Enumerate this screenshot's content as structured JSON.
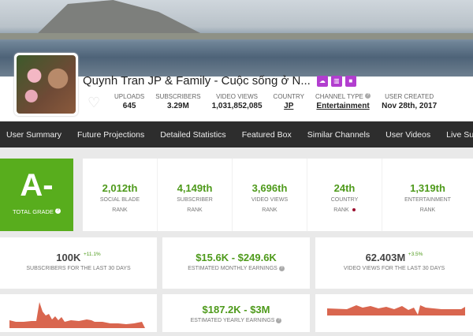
{
  "channel": {
    "name": "Quynh Tran JP & Family - Cuộc sống ở N...",
    "badges": [
      "upload-cloud-icon",
      "chart-icon",
      "video-camera-icon"
    ]
  },
  "stats": [
    {
      "label": "UPLOADS",
      "value": "645"
    },
    {
      "label": "SUBSCRIBERS",
      "value": "3.29M"
    },
    {
      "label": "VIDEO VIEWS",
      "value": "1,031,852,085"
    },
    {
      "label": "COUNTRY",
      "value": "JP"
    },
    {
      "label": "CHANNEL TYPE",
      "value": "Entertainment"
    },
    {
      "label": "USER CREATED",
      "value": "Nov 28th, 2017"
    }
  ],
  "nav": [
    "User Summary",
    "Future Projections",
    "Detailed Statistics",
    "Featured Box",
    "Similar Channels",
    "User Videos",
    "Live Subscriber"
  ],
  "grade": {
    "value": "A-",
    "label": "TOTAL GRADE"
  },
  "ranks": [
    {
      "value": "2,012th",
      "l1": "SOCIAL BLADE",
      "l2": "RANK"
    },
    {
      "value": "4,149th",
      "l1": "SUBSCRIBER",
      "l2": "RANK"
    },
    {
      "value": "3,696th",
      "l1": "VIDEO VIEWS",
      "l2": "RANK"
    },
    {
      "value": "24th",
      "l1": "COUNTRY",
      "l2": "RANK"
    },
    {
      "value": "1,319th",
      "l1": "ENTERTAINMENT",
      "l2": "RANK"
    }
  ],
  "summary": {
    "subs30": {
      "value": "100K",
      "change": "+11.1%",
      "label": "SUBSCRIBERS FOR THE LAST 30 DAYS"
    },
    "monthly": {
      "value": "$15.6K - $249.6K",
      "label": "ESTIMATED MONTHLY EARNINGS"
    },
    "views30": {
      "value": "62.403M",
      "change": "+3.5%",
      "label": "VIDEO VIEWS FOR THE LAST 30 DAYS"
    },
    "yearly": {
      "value": "$187.2K - $3M",
      "label": "ESTIMATED YEARLY EARNINGS"
    }
  },
  "colors": {
    "accent_green": "#58ad1d",
    "nav_bg": "#2d2d2d",
    "badge_purple": "#b23ecf",
    "sparkline": "#d9664f"
  }
}
